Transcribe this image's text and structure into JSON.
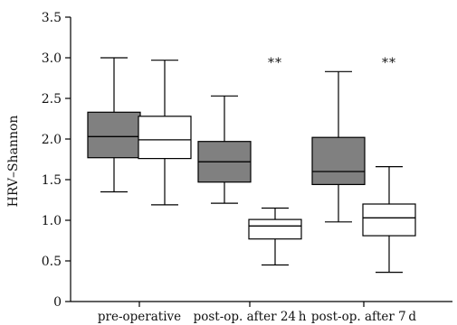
{
  "chart_data": {
    "type": "box",
    "title": "",
    "xlabel": "",
    "ylabel": "HRV–Shannon",
    "ylim": [
      0,
      3.5
    ],
    "yticks": [
      0,
      0.5,
      1.0,
      1.5,
      2.0,
      2.5,
      3.0,
      3.5
    ],
    "ytick_labels": [
      "0",
      "0.5",
      "1.0",
      "1.5",
      "2.0",
      "2.5",
      "3.0",
      "3.5"
    ],
    "categories": [
      "pre-operative",
      "post-op. after 24 h",
      "post-op. after 7 d"
    ],
    "grid": false,
    "legend": "none",
    "box_colors": [
      "#808080",
      "#ffffff"
    ],
    "boxes": [
      {
        "category": 0,
        "pair_index": 0,
        "min": 1.35,
        "q1": 1.77,
        "median": 2.03,
        "q3": 2.33,
        "max": 3.0
      },
      {
        "category": 0,
        "pair_index": 1,
        "min": 1.19,
        "q1": 1.76,
        "median": 1.99,
        "q3": 2.28,
        "max": 2.97
      },
      {
        "category": 1,
        "pair_index": 0,
        "min": 1.21,
        "q1": 1.47,
        "median": 1.72,
        "q3": 1.97,
        "max": 2.53
      },
      {
        "category": 1,
        "pair_index": 1,
        "min": 0.45,
        "q1": 0.77,
        "median": 0.93,
        "q3": 1.01,
        "max": 1.15
      },
      {
        "category": 2,
        "pair_index": 0,
        "min": 0.98,
        "q1": 1.44,
        "median": 1.6,
        "q3": 2.02,
        "max": 2.83
      },
      {
        "category": 2,
        "pair_index": 1,
        "min": 0.36,
        "q1": 0.81,
        "median": 1.03,
        "q3": 1.2,
        "max": 1.66
      }
    ],
    "annotations": [
      {
        "text": "**",
        "category": 1,
        "y": 2.99
      },
      {
        "text": "**",
        "category": 2,
        "y": 2.99
      }
    ]
  }
}
